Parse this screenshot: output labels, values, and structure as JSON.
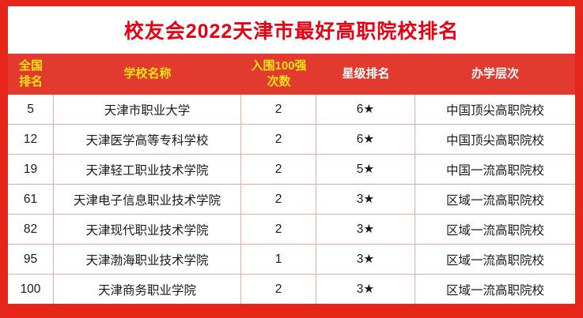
{
  "title": "校友会2022天津市最好高职院校排名",
  "colors": {
    "frame_red": "#e6261b",
    "header_red": "#e23a2e",
    "title_red": "#e60012",
    "header_yellow": "#ffe212",
    "header_white": "#ffffff",
    "grid_line": "#f0aba1",
    "body_text": "#1a1a1a"
  },
  "table": {
    "headers": [
      {
        "lines": [
          "全国",
          "排名"
        ],
        "color": "#ffe212"
      },
      {
        "lines": [
          "学校名称"
        ],
        "color": "#ffe212"
      },
      {
        "lines": [
          "入围100强",
          "次数"
        ],
        "color": "#ffe212"
      },
      {
        "lines": [
          "星级排名"
        ],
        "color": "#ffffff"
      },
      {
        "lines": [
          "办学层次"
        ],
        "color": "#ffffff"
      }
    ]
  },
  "chart_data": {
    "type": "table",
    "title": "校友会2022天津市最好高职院校排名",
    "columns": [
      "全国排名",
      "学校名称",
      "入围100强次数",
      "星级排名",
      "办学层次"
    ],
    "rows": [
      [
        "5",
        "天津市职业大学",
        "2",
        "6★",
        "中国顶尖高职院校"
      ],
      [
        "12",
        "天津医学高等专科学校",
        "2",
        "6★",
        "中国顶尖高职院校"
      ],
      [
        "19",
        "天津轻工职业技术学院",
        "2",
        "5★",
        "中国一流高职院校"
      ],
      [
        "61",
        "天津电子信息职业技术学院",
        "2",
        "3★",
        "区域一流高职院校"
      ],
      [
        "82",
        "天津现代职业技术学院",
        "2",
        "3★",
        "区域一流高职院校"
      ],
      [
        "95",
        "天津渤海职业技术学院",
        "1",
        "3★",
        "区域一流高职院校"
      ],
      [
        "100",
        "天津商务职业学院",
        "2",
        "3★",
        "区域一流高职院校"
      ]
    ]
  }
}
